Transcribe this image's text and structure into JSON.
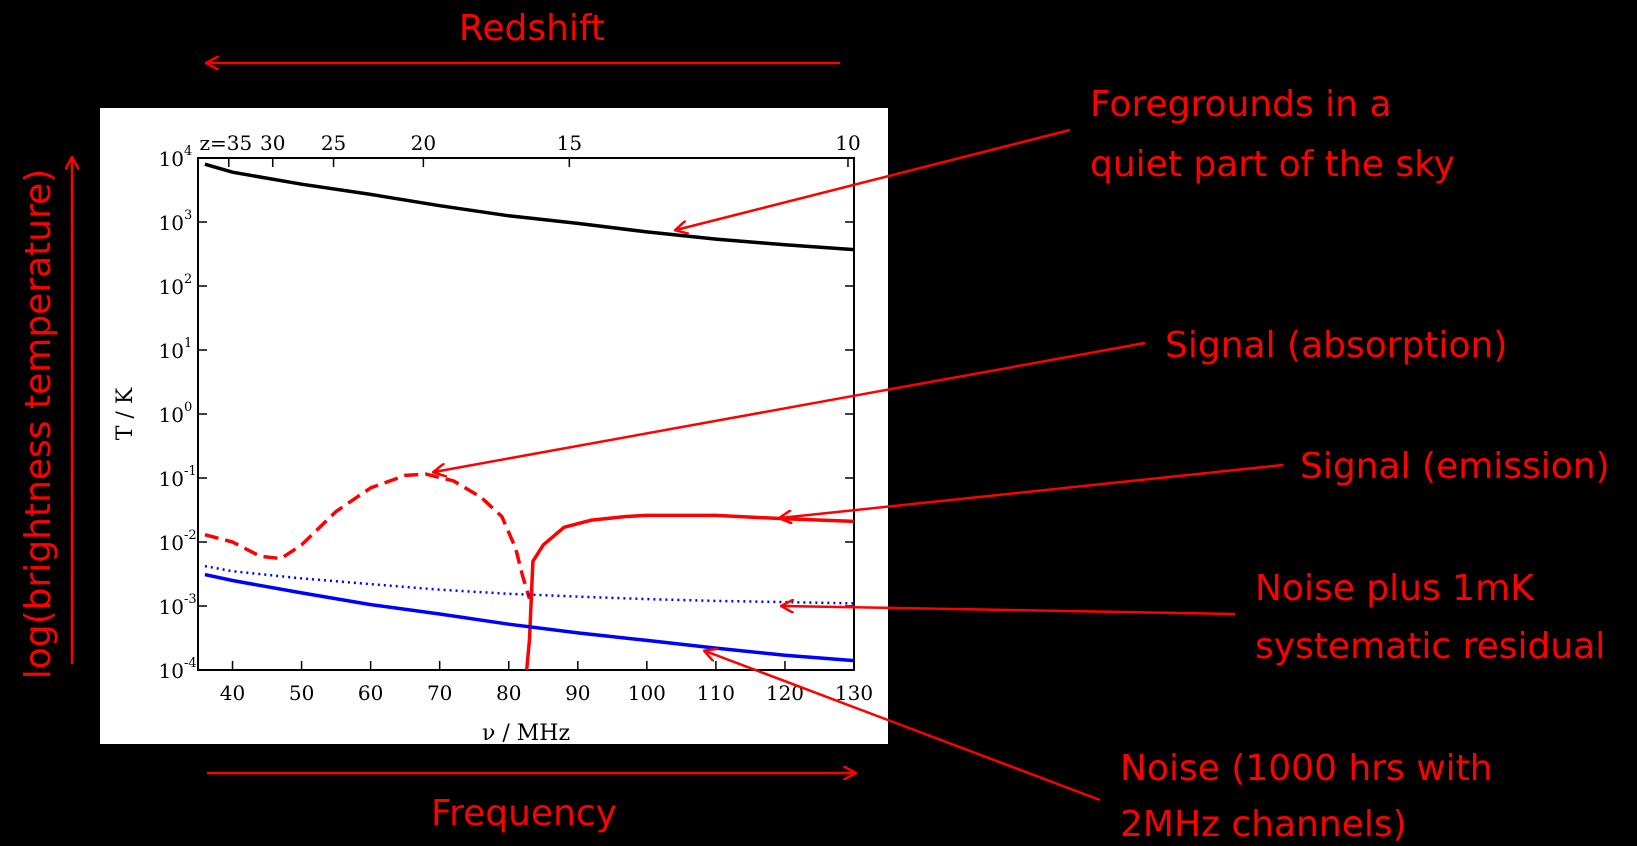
{
  "annotations": {
    "redshift": "Redshift",
    "frequency": "Frequency",
    "brightness": "log(brightness temperature)",
    "foregrounds_line1": "Foregrounds in a",
    "foregrounds_line2": "quiet part of the sky",
    "absorption": "Signal (absorption)",
    "emission": "Signal (emission)",
    "noise_sys_line1": "Noise plus 1mK",
    "noise_sys_line2": "systematic residual",
    "noise_line1": "Noise (1000 hrs with",
    "noise_line2": "2MHz channels)",
    "color": "#ff0000"
  },
  "chart_data": {
    "type": "line",
    "xlabel": "ν / MHz",
    "ylabel": "T / K",
    "xlim": [
      35,
      130
    ],
    "ylim": [
      0.0001,
      10000
    ],
    "y_scale": "log",
    "x_ticks": [
      "40",
      "50",
      "60",
      "70",
      "80",
      "90",
      "100",
      "110",
      "120",
      "130"
    ],
    "y_ticks": [
      {
        "value": 10000,
        "base": "10",
        "exp": "4"
      },
      {
        "value": 1000,
        "base": "10",
        "exp": "3"
      },
      {
        "value": 100,
        "base": "10",
        "exp": "2"
      },
      {
        "value": 10,
        "base": "10",
        "exp": "1"
      },
      {
        "value": 1,
        "base": "10",
        "exp": "0"
      },
      {
        "value": 0.1,
        "base": "10",
        "exp": "-1"
      },
      {
        "value": 0.01,
        "base": "10",
        "exp": "-2"
      },
      {
        "value": 0.001,
        "base": "10",
        "exp": "-3"
      },
      {
        "value": 0.0001,
        "base": "10",
        "exp": "-4"
      }
    ],
    "top_axis": {
      "label_prefix": "z=",
      "ticks": [
        {
          "z": 35,
          "label": "35"
        },
        {
          "z": 30,
          "label": "30"
        },
        {
          "z": 25,
          "label": "25"
        },
        {
          "z": 20,
          "label": "20"
        },
        {
          "z": 15,
          "label": "15"
        },
        {
          "z": 10,
          "label": "10"
        }
      ]
    },
    "grid": false,
    "series": [
      {
        "key": "foreground",
        "color": "#000000",
        "style": "solid",
        "points": [
          [
            36,
            8000
          ],
          [
            40,
            6000
          ],
          [
            50,
            3900
          ],
          [
            60,
            2700
          ],
          [
            70,
            1800
          ],
          [
            80,
            1250
          ],
          [
            90,
            950
          ],
          [
            100,
            700
          ],
          [
            110,
            540
          ],
          [
            120,
            440
          ],
          [
            130,
            370
          ]
        ]
      },
      {
        "key": "absorption",
        "color": "#ff0000",
        "style": "dashed",
        "points": [
          [
            36,
            0.013
          ],
          [
            40,
            0.01
          ],
          [
            44,
            0.006
          ],
          [
            47,
            0.0055
          ],
          [
            50,
            0.009
          ],
          [
            55,
            0.03
          ],
          [
            60,
            0.07
          ],
          [
            65,
            0.11
          ],
          [
            68,
            0.115
          ],
          [
            72,
            0.09
          ],
          [
            76,
            0.05
          ],
          [
            79,
            0.025
          ],
          [
            81,
            0.008
          ],
          [
            82,
            0.003
          ],
          [
            83,
            0.0013
          ]
        ]
      },
      {
        "key": "emission",
        "color": "#ff0000",
        "style": "solid",
        "points": [
          [
            82.6,
            0.0001
          ],
          [
            83,
            0.0003
          ],
          [
            83.5,
            0.005
          ],
          [
            85,
            0.009
          ],
          [
            88,
            0.017
          ],
          [
            92,
            0.022
          ],
          [
            97,
            0.025
          ],
          [
            100,
            0.026
          ],
          [
            110,
            0.026
          ],
          [
            120,
            0.023
          ],
          [
            130,
            0.021
          ]
        ]
      },
      {
        "key": "noise_sys",
        "color": "#0000ff",
        "style": "dotted",
        "points": [
          [
            36,
            0.0042
          ],
          [
            40,
            0.0035
          ],
          [
            50,
            0.0027
          ],
          [
            60,
            0.0022
          ],
          [
            70,
            0.0018
          ],
          [
            80,
            0.00155
          ],
          [
            90,
            0.0014
          ],
          [
            100,
            0.00128
          ],
          [
            110,
            0.0012
          ],
          [
            120,
            0.00115
          ],
          [
            130,
            0.0011
          ]
        ]
      },
      {
        "key": "noise",
        "color": "#0000ff",
        "style": "solid",
        "points": [
          [
            36,
            0.0031
          ],
          [
            40,
            0.0025
          ],
          [
            50,
            0.0016
          ],
          [
            60,
            0.00105
          ],
          [
            70,
            0.00075
          ],
          [
            80,
            0.00052
          ],
          [
            90,
            0.00038
          ],
          [
            100,
            0.00029
          ],
          [
            110,
            0.00022
          ],
          [
            120,
            0.00017
          ],
          [
            130,
            0.00014
          ]
        ]
      }
    ]
  }
}
